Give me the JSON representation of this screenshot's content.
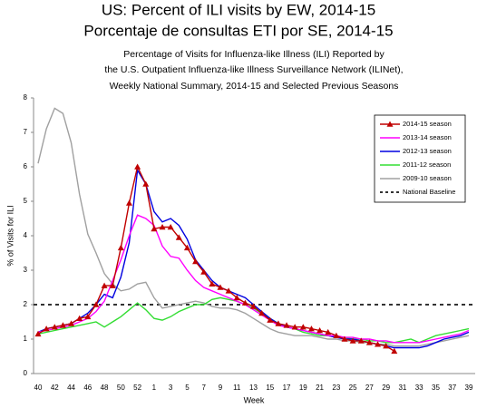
{
  "chart_data": {
    "type": "line",
    "title": [
      "US: Percent of ILI visits by EW, 2014-15",
      "Porcentaje de consultas ETI por SE, 2014-15"
    ],
    "subtitle": [
      "Percentage of Visits for Influenza-like Illness (ILI) Reported by",
      "the U.S. Outpatient Influenza-like Illness Surveillance Network (ILINet),",
      "Weekly National Summary, 2014-15 and Selected Previous Seasons"
    ],
    "xlabel": "Week",
    "ylabel": "% of Visits for ILI",
    "categories": [
      40,
      null,
      42,
      null,
      44,
      null,
      46,
      null,
      48,
      null,
      50,
      null,
      52,
      null,
      1,
      null,
      3,
      null,
      5,
      null,
      7,
      null,
      9,
      null,
      11,
      null,
      13,
      null,
      15,
      null,
      17,
      null,
      19,
      null,
      21,
      null,
      23,
      null,
      25,
      null,
      27,
      null,
      29,
      null,
      31,
      null,
      33,
      null,
      35,
      null,
      37,
      null,
      39
    ],
    "ylim": [
      0,
      8
    ],
    "yticks": [
      0,
      1,
      2,
      3,
      4,
      5,
      6,
      7,
      8
    ],
    "legend": "upper right",
    "series": [
      {
        "name": "2014-15 season",
        "color": "#c00000",
        "marker": "triangle",
        "values": [
          1.15,
          1.3,
          1.35,
          1.4,
          1.45,
          1.6,
          1.65,
          2.0,
          2.55,
          2.55,
          3.65,
          4.95,
          6.0,
          5.5,
          4.2,
          4.25,
          4.25,
          3.95,
          3.65,
          3.25,
          2.95,
          2.6,
          2.5,
          2.4,
          2.2,
          2.05,
          1.95,
          1.75,
          1.55,
          1.45,
          1.4,
          1.35,
          1.35,
          1.3,
          1.25,
          1.2,
          1.1,
          1.0,
          0.95,
          0.95,
          0.9,
          0.85,
          0.8,
          0.65,
          null,
          null,
          null,
          null,
          null,
          null,
          null,
          null,
          null
        ]
      },
      {
        "name": "2013-14 season",
        "color": "#ff00ff",
        "values": [
          1.2,
          1.25,
          1.3,
          1.35,
          1.4,
          1.5,
          1.6,
          1.8,
          2.1,
          2.7,
          3.3,
          4.0,
          4.6,
          4.5,
          4.3,
          3.7,
          3.4,
          3.35,
          3.0,
          2.7,
          2.5,
          2.4,
          2.3,
          2.2,
          2.1,
          2.0,
          1.85,
          1.7,
          1.55,
          1.4,
          1.35,
          1.3,
          1.25,
          1.2,
          1.15,
          1.1,
          1.1,
          1.05,
          1.05,
          1.0,
          1.0,
          0.95,
          0.95,
          0.9,
          0.9,
          0.9,
          0.9,
          0.95,
          1.0,
          1.05,
          1.1,
          1.15,
          1.25
        ]
      },
      {
        "name": "2012-13 season",
        "color": "#0000e0",
        "values": [
          1.2,
          1.3,
          1.35,
          1.4,
          1.45,
          1.6,
          1.75,
          2.0,
          2.3,
          2.2,
          2.8,
          3.8,
          5.9,
          5.5,
          4.7,
          4.4,
          4.5,
          4.3,
          3.9,
          3.3,
          3.0,
          2.7,
          2.5,
          2.4,
          2.3,
          2.2,
          2.0,
          1.8,
          1.6,
          1.45,
          1.35,
          1.3,
          1.25,
          1.2,
          1.15,
          1.1,
          1.05,
          1.0,
          1.0,
          0.95,
          0.9,
          0.85,
          0.8,
          0.75,
          0.75,
          0.75,
          0.75,
          0.8,
          0.9,
          1.0,
          1.05,
          1.1,
          1.2
        ]
      },
      {
        "name": "2011-12 season",
        "color": "#33dd33",
        "values": [
          1.15,
          1.2,
          1.25,
          1.3,
          1.35,
          1.4,
          1.45,
          1.5,
          1.35,
          1.5,
          1.65,
          1.85,
          2.05,
          1.85,
          1.6,
          1.55,
          1.65,
          1.8,
          1.9,
          2.0,
          2.0,
          2.15,
          2.2,
          2.15,
          2.1,
          2.0,
          1.9,
          1.75,
          1.6,
          1.45,
          1.35,
          1.3,
          1.2,
          1.15,
          1.1,
          1.1,
          1.05,
          1.05,
          1.0,
          1.0,
          0.95,
          0.95,
          0.9,
          0.9,
          0.95,
          1.0,
          0.9,
          1.0,
          1.1,
          1.15,
          1.2,
          1.25,
          1.3
        ]
      },
      {
        "name": "2009-10 season",
        "color": "#a0a0a0",
        "values": [
          6.1,
          7.1,
          7.7,
          7.55,
          6.7,
          5.2,
          4.05,
          3.5,
          2.9,
          2.6,
          2.4,
          2.45,
          2.6,
          2.65,
          2.2,
          1.9,
          1.95,
          2.0,
          2.05,
          2.1,
          2.05,
          1.95,
          1.9,
          1.9,
          1.85,
          1.75,
          1.6,
          1.45,
          1.3,
          1.2,
          1.15,
          1.1,
          1.1,
          1.1,
          1.05,
          1.0,
          1.0,
          0.95,
          0.95,
          0.9,
          0.9,
          0.85,
          0.85,
          0.8,
          0.8,
          0.8,
          0.8,
          0.85,
          0.9,
          0.95,
          1.0,
          1.05,
          1.1
        ]
      }
    ],
    "baseline": {
      "name": "National Baseline",
      "value": 2.0,
      "color": "#333333"
    }
  }
}
